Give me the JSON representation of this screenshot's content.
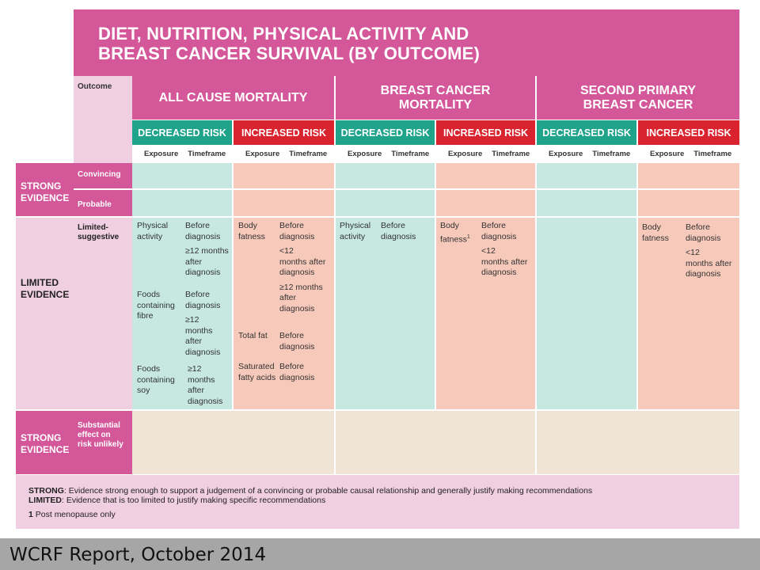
{
  "title": {
    "line1": "DIET, NUTRITION, PHYSICAL ACTIVITY AND",
    "line2": "BREAST CANCER SURVIVAL (BY OUTCOME)"
  },
  "header": {
    "outcome_label": "Outcome",
    "all_cause": "ALL CAUSE MORTALITY",
    "breast_cancer_mortality_l1": "BREAST CANCER",
    "breast_cancer_mortality_l2": "MORTALITY",
    "second_primary_l1": "SECOND PRIMARY",
    "second_primary_l2": "BREAST CANCER",
    "decreased": "DECREASED RISK",
    "increased": "INCREASED RISK",
    "exposure": "Exposure",
    "timeframe": "Timeframe"
  },
  "rows": {
    "strong_l1": "STRONG",
    "strong_l2": "EVIDENCE",
    "convincing": "Convincing",
    "probable": "Probable",
    "limited_l1": "LIMITED",
    "limited_l2": "EVIDENCE",
    "limited_suggestive_l1": "Limited-",
    "limited_suggestive_l2": "suggestive",
    "substantial_l1": "Substantial",
    "substantial_l2": "effect on",
    "substantial_l3": "risk unlikely"
  },
  "cells": {
    "acm_dec": [
      {
        "exposure": [
          "Physical",
          "activity"
        ],
        "timeframes": [
          [
            "Before",
            "diagnosis"
          ],
          [
            "≥12 months",
            "after",
            "diagnosis"
          ]
        ]
      },
      {
        "exposure": [
          "Foods",
          "containing",
          "fibre"
        ],
        "timeframes": [
          [
            "Before",
            "diagnosis"
          ],
          [
            "≥12",
            "months",
            "after",
            "diagnosis"
          ]
        ]
      },
      {
        "exposure": [
          "Foods",
          "containing",
          "soy"
        ],
        "timeframes": [
          [
            "≥12",
            "months",
            "after",
            "diagnosis"
          ]
        ]
      }
    ],
    "acm_inc": [
      {
        "exposure": [
          "Body",
          "fatness"
        ],
        "timeframes": [
          [
            "Before",
            "diagnosis"
          ],
          [
            "<12",
            "months after",
            "diagnosis"
          ],
          [
            "≥12 months",
            "after",
            "diagnosis"
          ]
        ]
      },
      {
        "exposure": [
          "Total fat"
        ],
        "timeframes": [
          [
            "Before",
            "diagnosis"
          ]
        ]
      },
      {
        "exposure": [
          "Saturated",
          "fatty acids"
        ],
        "timeframes": [
          [
            "Before",
            "diagnosis"
          ]
        ]
      }
    ],
    "bcm_dec": [
      {
        "exposure": [
          "Physical",
          "activity"
        ],
        "timeframes": [
          [
            "Before",
            "diagnosis"
          ]
        ]
      }
    ],
    "bcm_inc": [
      {
        "exposure": [
          "Body",
          "fatness"
        ],
        "footnote": "1",
        "timeframes": [
          [
            "Before",
            "diagnosis"
          ],
          [
            "<12",
            "months after",
            "diagnosis"
          ]
        ]
      }
    ],
    "spbc_inc": [
      {
        "exposure": [
          "Body",
          "fatness"
        ],
        "timeframes": [
          [
            "Before",
            "diagnosis"
          ],
          [
            "<12",
            "months after",
            "diagnosis"
          ]
        ]
      }
    ]
  },
  "legend": {
    "strong_term": "STRONG",
    "strong_def": ": Evidence strong enough to support a judgement of a convincing or probable causal relationship and generally justify making recommendations",
    "limited_term": "LIMITED",
    "limited_def": ": Evidence that is too limited to justify making specific recommendations",
    "footnote_num": "1",
    "footnote_text": " Post menopause only"
  },
  "footer": "WCRF Report, October 2014",
  "colors": {
    "magenta": "#d4579a",
    "pink_light": "#f1cfe2",
    "green": "#1fa38a",
    "red": "#d9242f",
    "green_cell": "#c6e8e0",
    "salmon_cell": "#f7c9bb",
    "beige_cell": "#efe4d5"
  }
}
